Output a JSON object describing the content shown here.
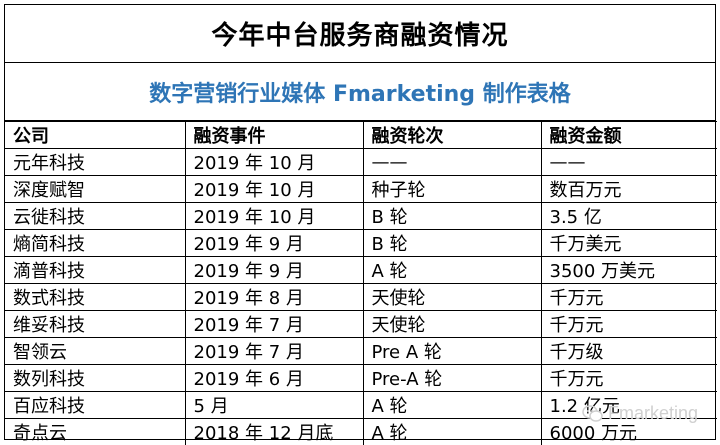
{
  "title": "今年中台服务商融资情况",
  "subtitle": "数字营销行业媒体 Fmarketing 制作表格",
  "table": {
    "headers": [
      "公司",
      "融资事件",
      "融资轮次",
      "融资金额"
    ],
    "rows": [
      [
        "元年科技",
        "2019 年 10 月",
        "——",
        "——"
      ],
      [
        "深度赋智",
        "2019 年 10 月",
        "种子轮",
        "数百万元"
      ],
      [
        "云徙科技",
        "2019 年 10 月",
        "B 轮",
        "3.5 亿"
      ],
      [
        "熵简科技",
        "2019 年 9 月",
        "B  轮",
        "千万美元"
      ],
      [
        "滴普科技",
        "2019 年 9 月",
        "A 轮",
        "3500 万美元"
      ],
      [
        "数式科技",
        "2019 年 8 月",
        "天使轮",
        "千万元"
      ],
      [
        "维妥科技",
        "2019 年 7 月",
        "天使轮",
        "千万元"
      ],
      [
        "智领云",
        "2019 年 7 月",
        "Pre A  轮",
        "千万级"
      ],
      [
        "数列科技",
        "2019 年 6 月",
        "Pre-A 轮",
        "千万元"
      ],
      [
        "百应科技",
        "5  月",
        "A  轮",
        "1.2  亿元"
      ],
      [
        "奇点云",
        "2018 年 12 月底",
        "A 轮",
        "6000 万元"
      ]
    ]
  },
  "watermark": {
    "text": "Fmarketing",
    "icon": "wechat-icon"
  }
}
